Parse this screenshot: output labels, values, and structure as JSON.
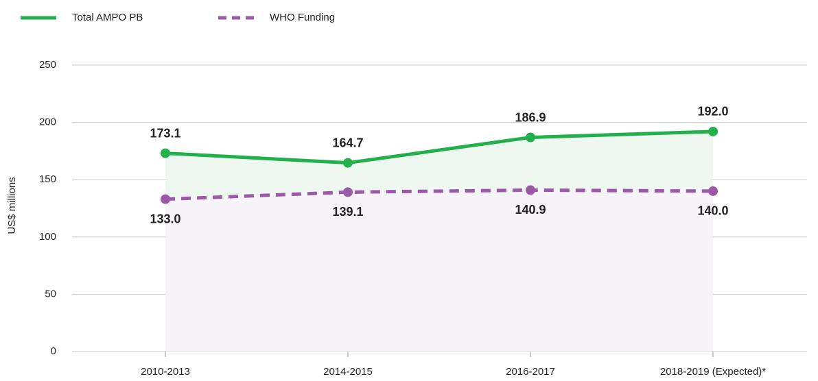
{
  "chart_data": {
    "type": "line",
    "ylabel": "US$ millions",
    "categories": [
      "2010-2013",
      "2014-2015",
      "2016-2017",
      "2018-2019 (Expected)*"
    ],
    "series": [
      {
        "name": "Total AMPO PB",
        "color": "#22b04b",
        "fill": "#eef8f0",
        "dashed": false,
        "label_position": "above",
        "values": [
          173.1,
          164.7,
          186.9,
          192.0
        ],
        "value_labels": [
          "173.1",
          "164.7",
          "186.9",
          "192.0"
        ]
      },
      {
        "name": "WHO Funding",
        "color": "#9b59a8",
        "fill": "#f7f4f9",
        "dashed": true,
        "label_position": "below",
        "values": [
          133.0,
          139.1,
          140.9,
          140.0
        ],
        "value_labels": [
          "133.0",
          "139.1",
          "140.9",
          "140.0"
        ]
      }
    ],
    "ylim": [
      0,
      250
    ],
    "yticks": [
      0,
      50,
      100,
      150,
      200,
      250
    ],
    "grid": true
  }
}
